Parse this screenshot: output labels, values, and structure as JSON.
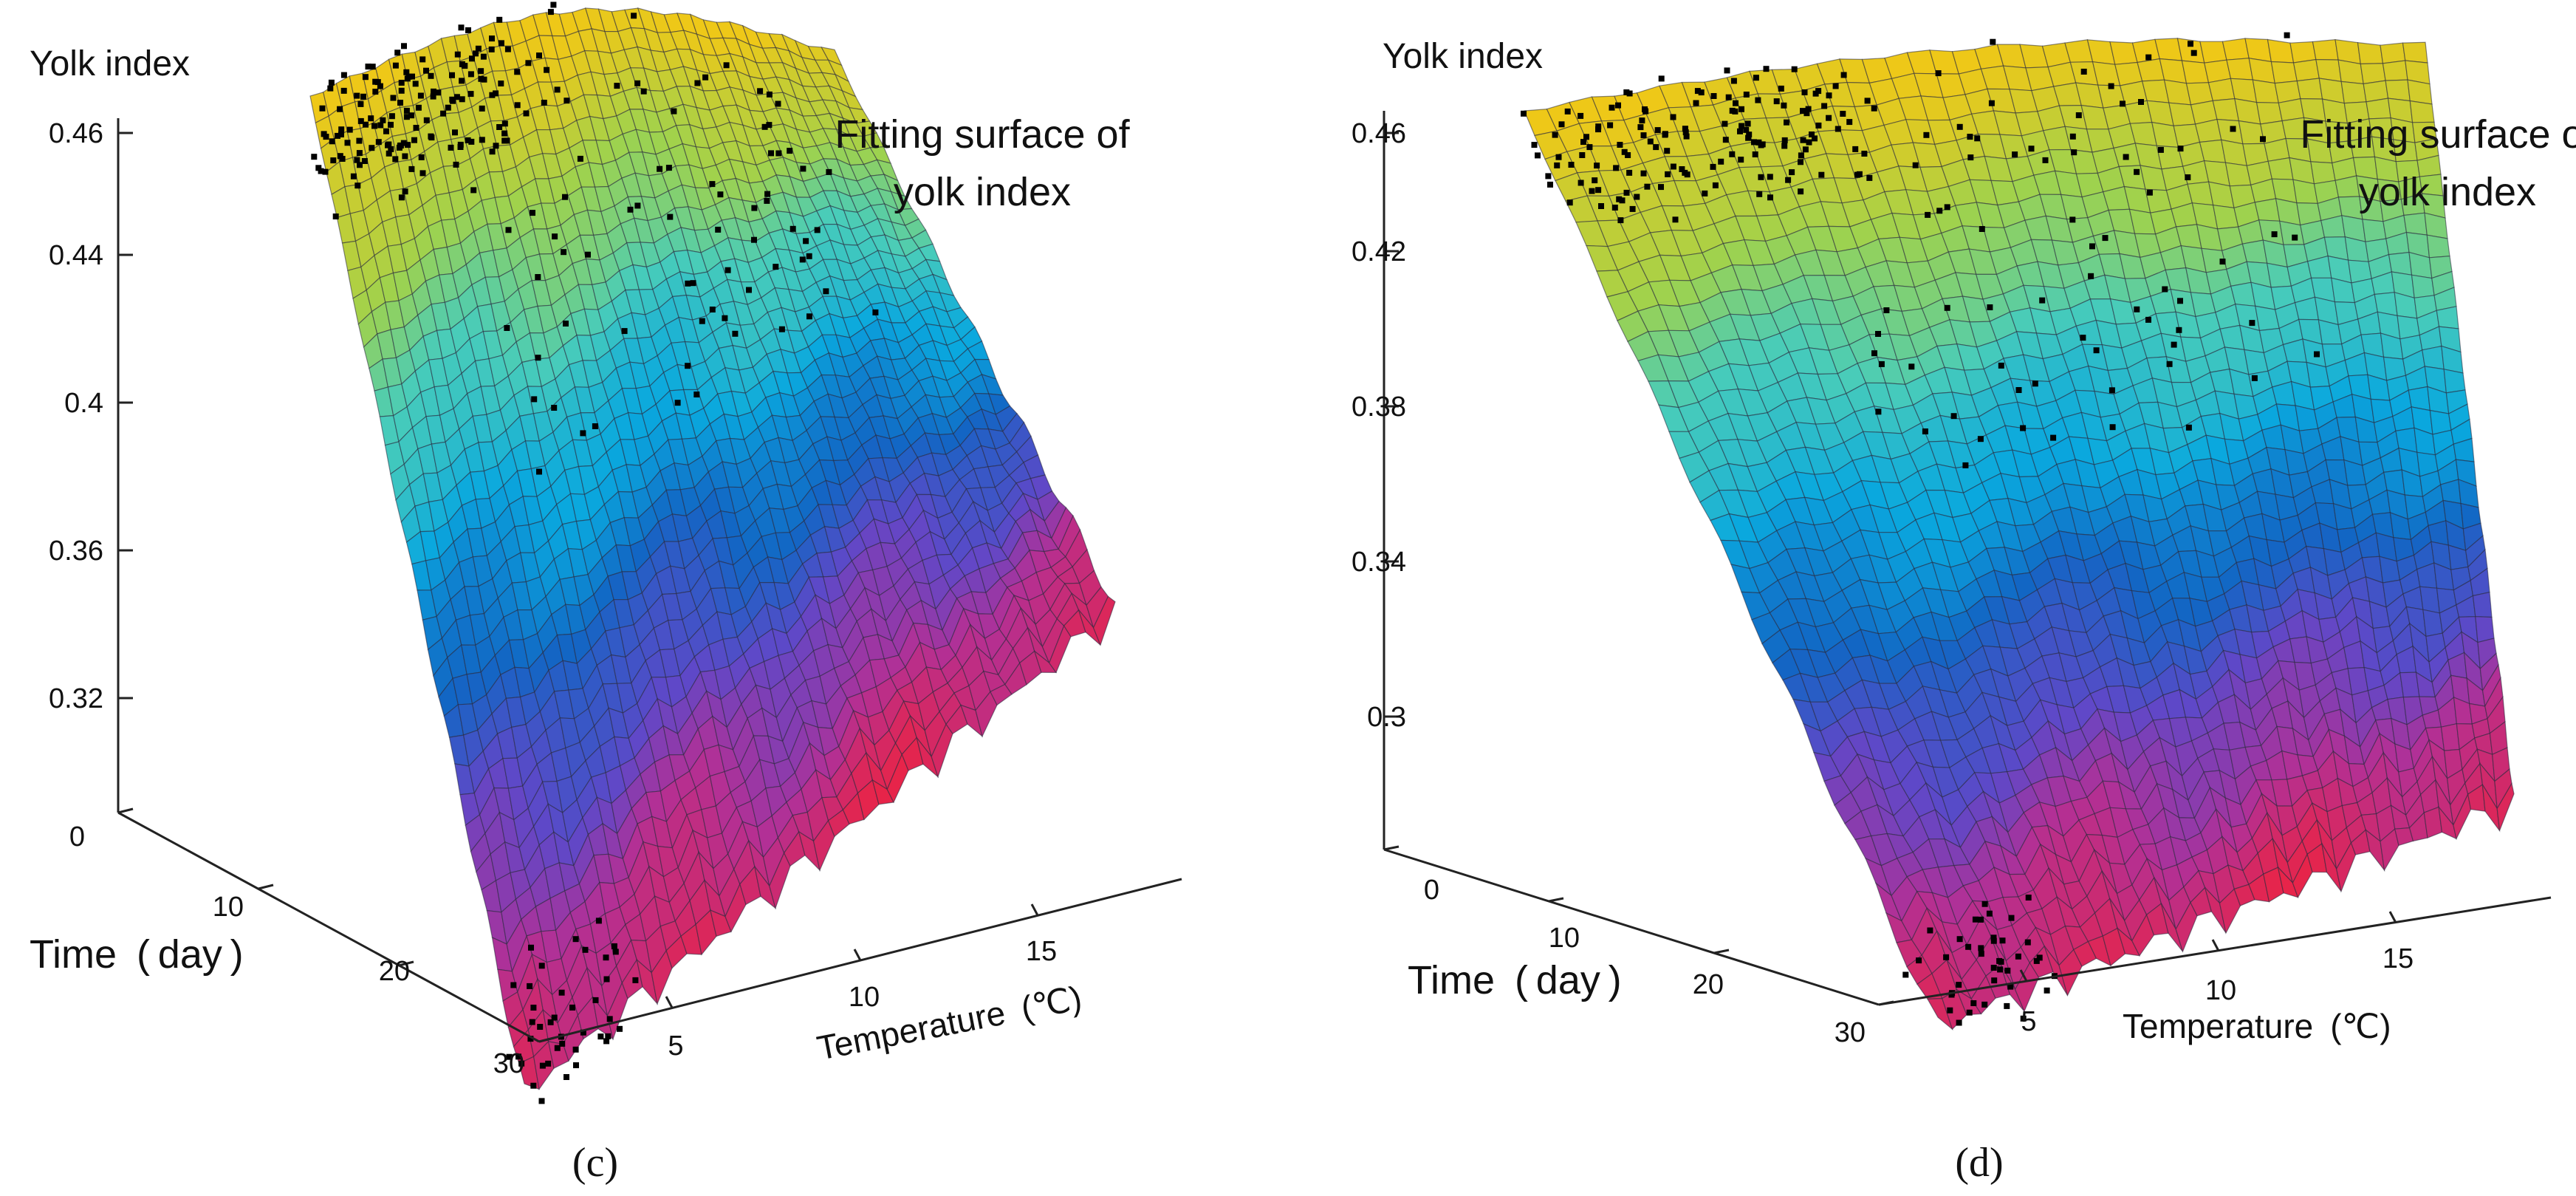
{
  "chart_data": [
    {
      "type": "surface",
      "panel_label": "(c)",
      "title": "",
      "zlabel": "Yolk index",
      "xlabel": "Temperature (℃)",
      "ylabel": "Time ( day )",
      "annotation": [
        "Fitting surface of",
        "yolk index"
      ],
      "z_ticks": [
        "0.46",
        "0.44",
        "0.4",
        "0.36",
        "0.32"
      ],
      "y_ticks": [
        "0",
        "10",
        "20",
        "30"
      ],
      "x_ticks": [
        "5",
        "10",
        "15"
      ],
      "xlim": [
        3,
        19
      ],
      "ylim": [
        0,
        30
      ],
      "zlim": [
        0.28,
        0.46
      ],
      "surface_range": [
        0.29,
        0.46
      ],
      "point_color": "#000000"
    },
    {
      "type": "surface",
      "panel_label": "(d)",
      "title": "",
      "zlabel": "Yolk index",
      "xlabel": "Temperature (℃)",
      "ylabel": "Time ( day )",
      "annotation": [
        "Fitting surface of",
        "yolk index"
      ],
      "z_ticks": [
        "0.46",
        "0.42",
        "0.38",
        "0.34",
        "0.3"
      ],
      "y_ticks": [
        "0",
        "10",
        "20",
        "30"
      ],
      "x_ticks": [
        "5",
        "10",
        "15"
      ],
      "xlim": [
        3,
        19
      ],
      "ylim": [
        0,
        30
      ],
      "zlim": [
        0.26,
        0.46
      ],
      "surface_range": [
        0.27,
        0.46
      ],
      "point_color": "#000000"
    }
  ]
}
